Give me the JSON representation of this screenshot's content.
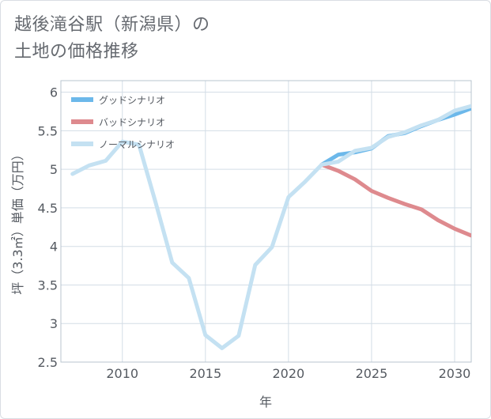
{
  "title": "越後滝谷駅（新潟県）の\n土地の価格推移",
  "chart_data": {
    "type": "line",
    "title": "越後滝谷駅（新潟県）の土地の価格推移",
    "xlabel": "年",
    "ylabel": "坪（3.3㎡）単価（万円）",
    "xlim": [
      2006.3,
      2031
    ],
    "ylim": [
      2.5,
      6.15
    ],
    "xticks": [
      2010,
      2015,
      2020,
      2025,
      2030
    ],
    "yticks": [
      2.5,
      3,
      3.5,
      4,
      4.5,
      5,
      5.5,
      6
    ],
    "legend_position": "top-left",
    "grid": true,
    "series": [
      {
        "name": "グッドシナリオ",
        "color": "#6cb8ea",
        "x": [
          2022,
          2023,
          2024,
          2025,
          2026,
          2027,
          2028,
          2029,
          2030,
          2031
        ],
        "y": [
          5.06,
          5.19,
          5.22,
          5.27,
          5.43,
          5.47,
          5.56,
          5.64,
          5.71,
          5.79
        ]
      },
      {
        "name": "バッドシナリオ",
        "color": "#de8a8e",
        "x": [
          2022,
          2023,
          2024,
          2025,
          2026,
          2027,
          2028,
          2029,
          2030,
          2031
        ],
        "y": [
          5.06,
          4.98,
          4.87,
          4.72,
          4.63,
          4.55,
          4.48,
          4.34,
          4.23,
          4.14
        ]
      },
      {
        "name": "ノーマルシナリオ",
        "color": "#c4e1f2",
        "x": [
          2007,
          2008,
          2009,
          2010,
          2011,
          2012,
          2013,
          2014,
          2015,
          2016,
          2017,
          2018,
          2019,
          2020,
          2021,
          2022,
          2023,
          2024,
          2025,
          2026,
          2027,
          2028,
          2029,
          2030,
          2031
        ],
        "y": [
          4.94,
          5.05,
          5.11,
          5.36,
          5.32,
          4.57,
          3.79,
          3.59,
          2.85,
          2.68,
          2.84,
          3.76,
          3.99,
          4.64,
          4.84,
          5.06,
          5.1,
          5.24,
          5.28,
          5.42,
          5.48,
          5.57,
          5.64,
          5.76,
          5.82
        ]
      }
    ]
  }
}
